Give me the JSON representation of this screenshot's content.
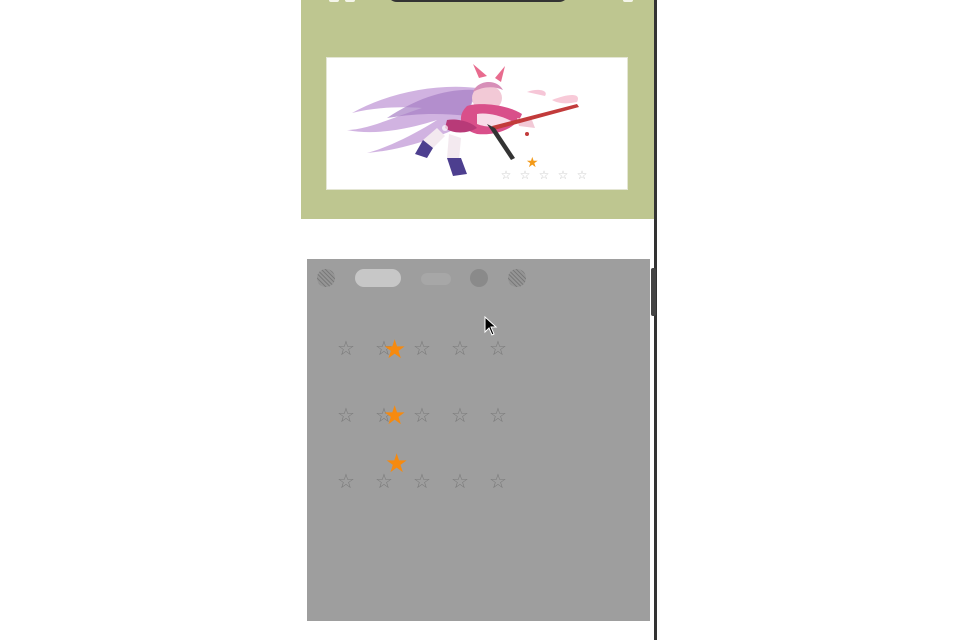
{
  "colors": {
    "header_bg": "#bec690",
    "panel_bg": "#9e9e9e",
    "star_empty": "#7a7a7a",
    "star_filled": "#f68a0f"
  },
  "icons": {
    "empty_star": "☆",
    "filled_star": "★",
    "cursor": "arrow-cursor-icon"
  },
  "banner": {
    "image": "anime-character-illustration",
    "rating": {
      "value": 1,
      "max": 5
    }
  },
  "toolbar": {
    "controls": [
      "textured-circle",
      "pill",
      "faint-pill",
      "solid-circle",
      "textured-circle"
    ]
  },
  "rating_rows": [
    {
      "value": 1,
      "max": 5
    },
    {
      "value": 1,
      "max": 5
    },
    {
      "value": 1,
      "max": 5
    }
  ]
}
